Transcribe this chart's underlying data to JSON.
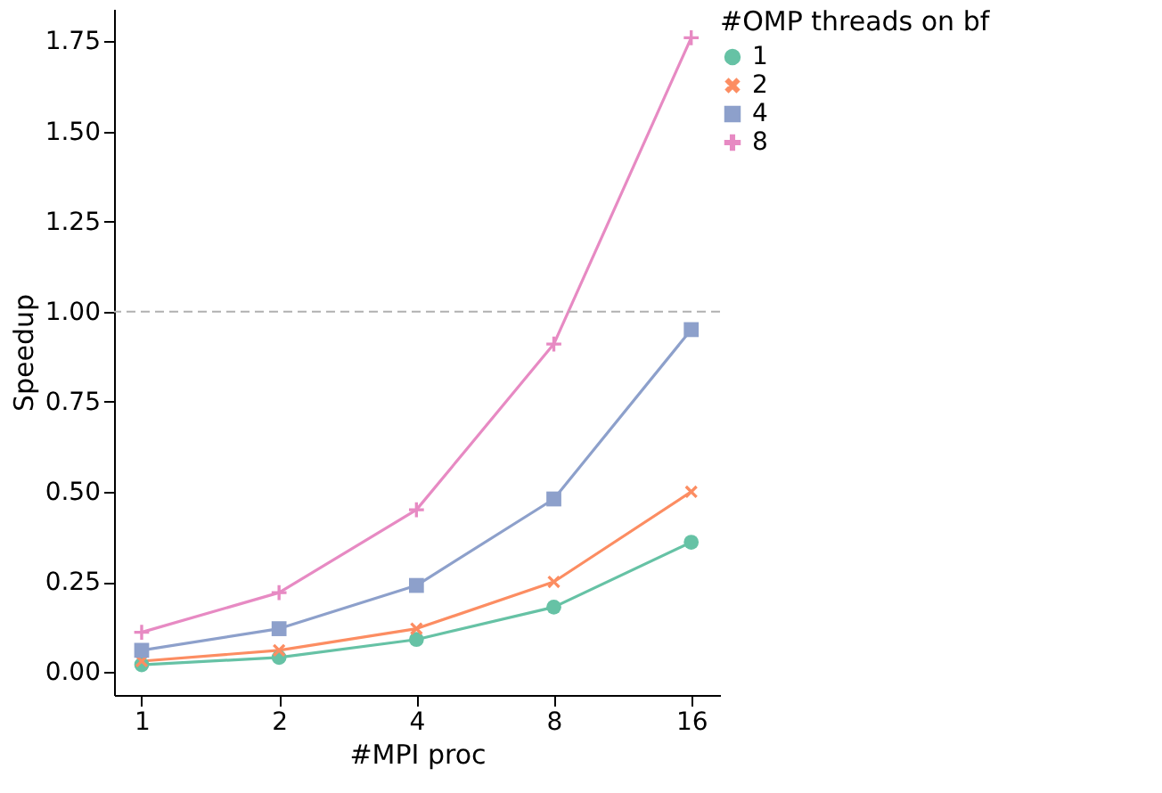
{
  "chart_data": {
    "type": "line",
    "xlabel": "#MPI proc",
    "ylabel": "Speedup",
    "legend_title": "#OMP threads on bf",
    "legend": "right",
    "grid": false,
    "log": "x",
    "x": [
      1,
      2,
      4,
      8,
      16
    ],
    "xlim": [
      0.87,
      18.5
    ],
    "xticks": [
      1,
      2,
      4,
      8,
      16
    ],
    "ylim": [
      -0.064,
      1.84
    ],
    "yticks": [
      {
        "value": 0,
        "label": "0.00"
      },
      {
        "value": 0.25,
        "label": "0.25"
      },
      {
        "value": 0.5,
        "label": "0.50"
      },
      {
        "value": 0.75,
        "label": "0.75"
      },
      {
        "value": 1,
        "label": "1.00"
      },
      {
        "value": 1.25,
        "label": "1.25"
      },
      {
        "value": 1.5,
        "label": "1.50"
      },
      {
        "value": 1.75,
        "label": "1.75"
      }
    ],
    "ref_lines": [
      {
        "axis": "y",
        "value": 1,
        "color": "#b0b0b0",
        "line_style": "dashed"
      }
    ],
    "series": [
      {
        "name": "1",
        "color": "#66c2a5",
        "marker": "circle",
        "values": [
          0.02,
          0.04,
          0.09,
          0.18,
          0.36
        ]
      },
      {
        "name": "2",
        "color": "#fc8d62",
        "marker": "x",
        "values": [
          0.03,
          0.06,
          0.12,
          0.25,
          0.5
        ]
      },
      {
        "name": "4",
        "color": "#8da0cb",
        "marker": "square",
        "values": [
          0.06,
          0.12,
          0.24,
          0.48,
          0.95
        ]
      },
      {
        "name": "8",
        "color": "#e78ac3",
        "marker": "cross",
        "values": [
          0.11,
          0.22,
          0.45,
          0.91,
          1.76
        ]
      }
    ]
  }
}
